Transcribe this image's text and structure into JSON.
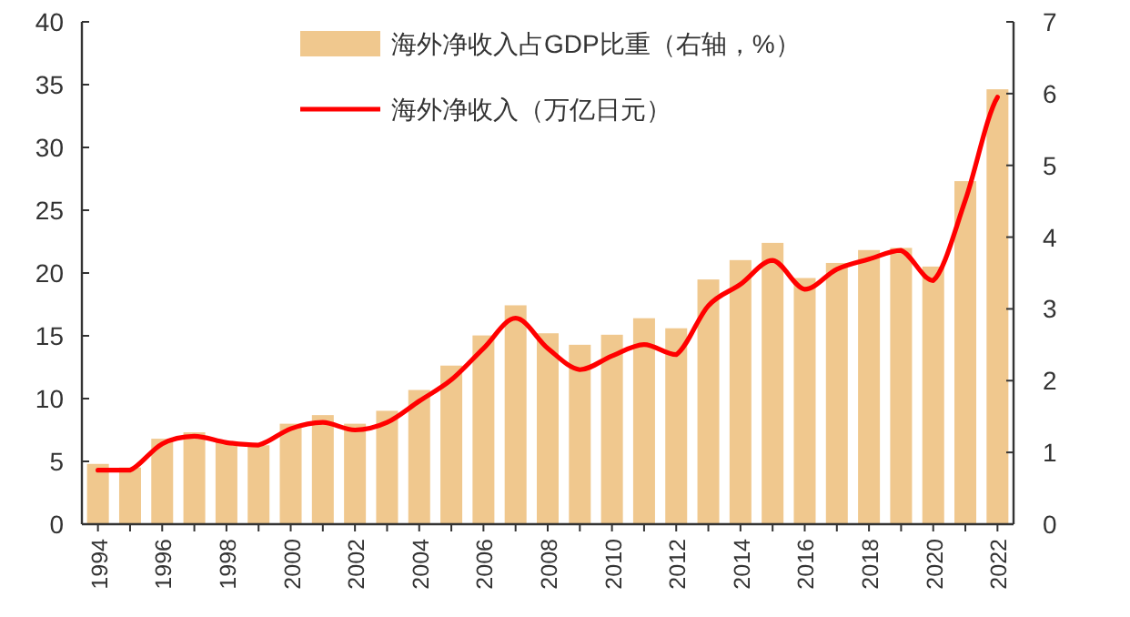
{
  "chart_data": {
    "type": "bar",
    "categories": [
      "1994",
      null,
      "1996",
      null,
      "1998",
      null,
      "2000",
      null,
      "2002",
      null,
      "2004",
      null,
      "2006",
      null,
      "2008",
      null,
      "2010",
      null,
      "2012",
      null,
      "2014",
      null,
      "2016",
      null,
      "2018",
      null,
      "2020",
      null,
      "2022"
    ],
    "series": [
      {
        "name": "海外净收入占GDP比重（右轴，%）",
        "axis": "y2",
        "color": "#f0c88e",
        "values": [
          0.84,
          0.79,
          1.19,
          1.28,
          1.14,
          1.1,
          1.4,
          1.52,
          1.4,
          1.58,
          1.87,
          2.21,
          2.63,
          3.05,
          2.66,
          2.5,
          2.64,
          2.87,
          2.73,
          3.41,
          3.68,
          3.92,
          3.43,
          3.64,
          3.82,
          3.85,
          3.59,
          4.78,
          6.06
        ]
      },
      {
        "name": "海外净收入（万亿日元）",
        "type": "line",
        "axis": "y",
        "color": "#ff0000",
        "values": [
          4.3,
          4.3,
          6.4,
          7.0,
          6.5,
          6.3,
          7.6,
          8.1,
          7.5,
          8.1,
          9.8,
          11.5,
          14.0,
          16.4,
          14.0,
          12.3,
          13.4,
          14.3,
          13.5,
          17.4,
          19.1,
          21.0,
          18.7,
          20.3,
          21.1,
          21.8,
          19.4,
          25.8,
          34.0
        ]
      }
    ],
    "ylim": [
      0,
      40
    ],
    "yticks": [
      0,
      5,
      10,
      15,
      20,
      25,
      30,
      35,
      40
    ],
    "y2lim": [
      0,
      7
    ],
    "y2ticks": [
      0,
      1,
      2,
      3,
      4,
      5,
      6,
      7
    ],
    "legend": "top",
    "grid": false
  }
}
